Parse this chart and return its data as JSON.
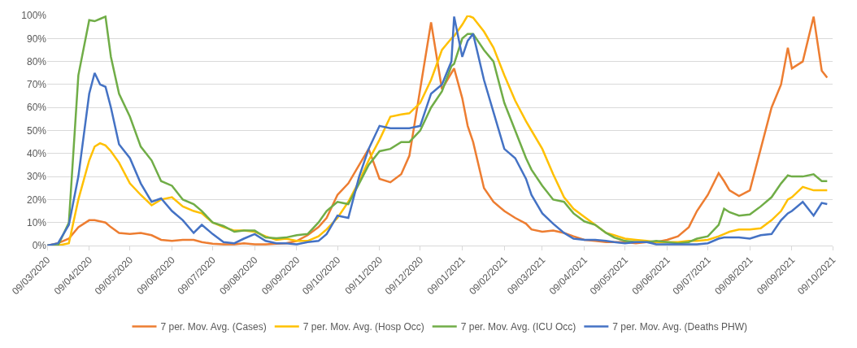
{
  "chart_data": {
    "type": "line",
    "x": [
      "2020-03-09",
      "2020-03-17",
      "2020-03-25",
      "2020-04-01",
      "2020-04-09",
      "2020-04-13",
      "2020-04-17",
      "2020-04-21",
      "2020-04-25",
      "2020-05-01",
      "2020-05-09",
      "2020-05-17",
      "2020-05-25",
      "2020-06-01",
      "2020-06-09",
      "2020-06-17",
      "2020-06-25",
      "2020-07-01",
      "2020-07-09",
      "2020-07-17",
      "2020-07-25",
      "2020-08-01",
      "2020-08-09",
      "2020-08-17",
      "2020-08-25",
      "2020-09-01",
      "2020-09-09",
      "2020-09-17",
      "2020-09-25",
      "2020-10-01",
      "2020-10-09",
      "2020-10-17",
      "2020-10-25",
      "2020-11-01",
      "2020-11-09",
      "2020-11-17",
      "2020-11-25",
      "2020-12-01",
      "2020-12-09",
      "2020-12-17",
      "2020-12-25",
      "2021-01-01",
      "2021-01-03",
      "2021-01-09",
      "2021-01-13",
      "2021-01-17",
      "2021-01-25",
      "2021-02-01",
      "2021-02-09",
      "2021-02-17",
      "2021-02-25",
      "2021-03-01",
      "2021-03-09",
      "2021-03-17",
      "2021-03-25",
      "2021-04-01",
      "2021-04-09",
      "2021-04-17",
      "2021-04-25",
      "2021-05-01",
      "2021-05-09",
      "2021-05-17",
      "2021-05-25",
      "2021-06-01",
      "2021-06-09",
      "2021-06-17",
      "2021-06-25",
      "2021-07-01",
      "2021-07-09",
      "2021-07-17",
      "2021-07-21",
      "2021-07-25",
      "2021-08-01",
      "2021-08-09",
      "2021-08-17",
      "2021-08-25",
      "2021-09-01",
      "2021-09-06",
      "2021-09-09",
      "2021-09-17",
      "2021-09-25",
      "2021-10-01",
      "2021-10-05"
    ],
    "series": [
      {
        "name": "7 per. Mov. Avg. (Cases)",
        "color": "#ed7d31",
        "values": [
          0,
          1,
          3,
          8,
          11,
          11,
          10.5,
          10,
          8,
          5.5,
          5,
          5.5,
          4.5,
          2.5,
          2,
          2.5,
          2.5,
          1.5,
          0.8,
          0.5,
          0.5,
          1,
          0.5,
          0.5,
          0.8,
          1,
          2,
          4.5,
          8,
          12,
          22,
          27,
          35,
          42,
          29,
          27.5,
          31,
          39,
          68,
          97,
          68,
          75,
          77,
          64,
          52,
          45,
          25,
          19,
          15,
          12,
          9.5,
          7,
          6,
          6.5,
          5.5,
          4,
          2.5,
          2,
          1.5,
          1.5,
          1.5,
          1,
          1.5,
          1.5,
          2.5,
          4,
          8,
          15,
          22,
          31.5,
          28,
          24,
          21.5,
          24,
          42,
          60,
          70,
          86,
          77,
          80,
          99.5,
          76,
          73
        ]
      },
      {
        "name": "7 per. Mov. Avg. (Hosp Occ)",
        "color": "#ffc000",
        "values": [
          0,
          0,
          1,
          20,
          37,
          43,
          44.5,
          43.5,
          41,
          36,
          27,
          22,
          17.5,
          20,
          21,
          17,
          15,
          14,
          10,
          8,
          6.5,
          6.5,
          6,
          4,
          2.5,
          3,
          2,
          2,
          4,
          7,
          12,
          19,
          28,
          37,
          46,
          56,
          57,
          57.5,
          62,
          72,
          85,
          90,
          91,
          96,
          100,
          99,
          93,
          86,
          74,
          63,
          54,
          50,
          42,
          31,
          21,
          16,
          12.5,
          9,
          5.5,
          4.5,
          3,
          2.5,
          2,
          1.5,
          1.5,
          1.5,
          2,
          2,
          2.5,
          4,
          5,
          6,
          7,
          7,
          7.5,
          11,
          15,
          20,
          21,
          25.5,
          24,
          24,
          24
        ]
      },
      {
        "name": "7 per. Mov. Avg. (ICU Occ)",
        "color": "#70ad47",
        "values": [
          0,
          0,
          10,
          74,
          98,
          97.5,
          98.5,
          99.5,
          82,
          66,
          56,
          43,
          37,
          28,
          26,
          20,
          18,
          15,
          10,
          8.5,
          6,
          6.5,
          6.5,
          3.5,
          3.2,
          3.5,
          4.5,
          5,
          10,
          15,
          19,
          18,
          27,
          35,
          41,
          42,
          45,
          45,
          50,
          60,
          67,
          78,
          79,
          90,
          92,
          92,
          85,
          80,
          62,
          50,
          38,
          33,
          26,
          20,
          19,
          14,
          10.5,
          9,
          5.5,
          3.5,
          2,
          1.5,
          1.5,
          2,
          1.5,
          1,
          1.5,
          3,
          4,
          9,
          16,
          14.5,
          13,
          13.5,
          17,
          21,
          27,
          30.5,
          30,
          30,
          31,
          28,
          28
        ]
      },
      {
        "name": "7 per. Mov. Avg. (Deaths PHW)",
        "color": "#4472c4",
        "values": [
          0,
          1,
          9,
          30,
          66,
          75,
          70,
          69,
          60,
          44,
          38,
          27,
          19,
          20.5,
          15,
          11,
          5.5,
          9,
          5,
          1.5,
          1,
          3,
          5,
          2,
          1,
          1,
          0.5,
          1.5,
          2,
          5,
          13,
          12,
          30,
          42,
          52,
          51,
          51,
          51,
          52,
          66,
          70,
          80,
          99.5,
          82,
          89,
          92,
          72,
          58,
          42,
          38,
          29,
          22,
          14,
          9.5,
          5.5,
          3,
          2.5,
          2.5,
          2,
          1.5,
          1,
          1.5,
          1.5,
          0.5,
          0.5,
          0.5,
          0.5,
          0.5,
          1,
          3,
          3.5,
          3.5,
          3.5,
          3,
          4.5,
          5,
          11,
          14,
          15,
          19,
          13,
          18.5,
          18
        ]
      }
    ],
    "xlim": [
      "2020-03-09",
      "2021-10-09"
    ],
    "xticks": [
      {
        "value": "2020-03-09",
        "label": "09/03/2020"
      },
      {
        "value": "2020-04-09",
        "label": "09/04/2020"
      },
      {
        "value": "2020-05-09",
        "label": "09/05/2020"
      },
      {
        "value": "2020-06-09",
        "label": "09/06/2020"
      },
      {
        "value": "2020-07-09",
        "label": "09/07/2020"
      },
      {
        "value": "2020-08-09",
        "label": "09/08/2020"
      },
      {
        "value": "2020-09-09",
        "label": "09/09/2020"
      },
      {
        "value": "2020-10-09",
        "label": "09/10/2020"
      },
      {
        "value": "2020-11-09",
        "label": "09/11/2020"
      },
      {
        "value": "2020-12-09",
        "label": "09/12/2020"
      },
      {
        "value": "2021-01-09",
        "label": "09/01/2021"
      },
      {
        "value": "2021-02-09",
        "label": "09/02/2021"
      },
      {
        "value": "2021-03-09",
        "label": "09/03/2021"
      },
      {
        "value": "2021-04-09",
        "label": "09/04/2021"
      },
      {
        "value": "2021-05-09",
        "label": "09/05/2021"
      },
      {
        "value": "2021-06-09",
        "label": "09/06/2021"
      },
      {
        "value": "2021-07-09",
        "label": "09/07/2021"
      },
      {
        "value": "2021-08-09",
        "label": "09/08/2021"
      },
      {
        "value": "2021-09-09",
        "label": "09/09/2021"
      },
      {
        "value": "2021-10-09",
        "label": "09/10/2021"
      }
    ],
    "ylim": [
      0,
      100
    ],
    "yticks": [
      {
        "value": 0,
        "label": "0%"
      },
      {
        "value": 10,
        "label": "10%"
      },
      {
        "value": 20,
        "label": "20%"
      },
      {
        "value": 30,
        "label": "30%"
      },
      {
        "value": 40,
        "label": "40%"
      },
      {
        "value": 50,
        "label": "50%"
      },
      {
        "value": 60,
        "label": "60%"
      },
      {
        "value": 70,
        "label": "70%"
      },
      {
        "value": 80,
        "label": "80%"
      },
      {
        "value": 90,
        "label": "90%"
      },
      {
        "value": 100,
        "label": "100%"
      }
    ],
    "grid": "y",
    "legend": "bottom"
  }
}
